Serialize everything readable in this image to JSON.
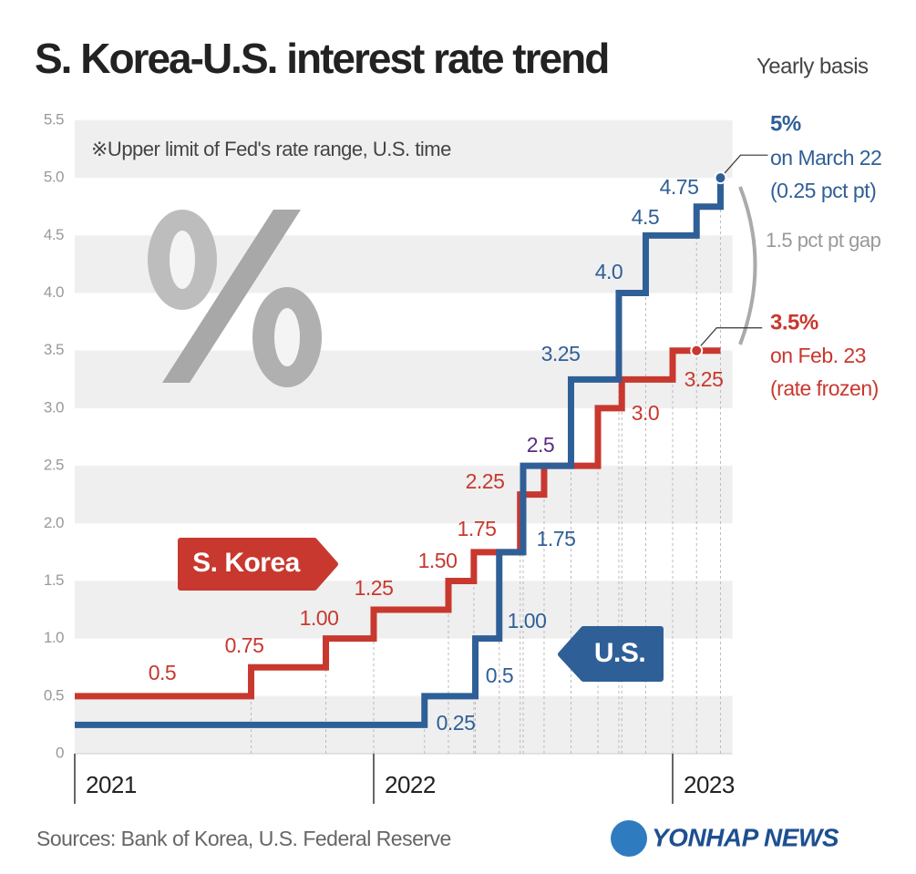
{
  "chart_data": {
    "type": "step",
    "title": "S. Korea-U.S. interest rate trend",
    "subtitle": "Yearly basis",
    "note": "※Upper limit of Fed's rate range, U.S. time",
    "source": "Sources: Bank of Korea, U.S. Federal Reserve",
    "logo": "YONHAP NEWS",
    "gap_annotation": "1.5 pct pt gap",
    "xlim": [
      2021,
      2023.2
    ],
    "xticks": [
      2021,
      2022,
      2023
    ],
    "ylim": [
      0,
      5.5
    ],
    "yticks": [
      0,
      0.5,
      {
        "value": 1,
        "label": "1.0"
      },
      1.5,
      {
        "value": 2,
        "label": "2.0"
      },
      2.5,
      {
        "value": 3,
        "label": "3.0"
      },
      3.5,
      {
        "value": 4,
        "label": "4.0"
      },
      4.5,
      {
        "value": 5,
        "label": "5.0"
      },
      5.5
    ],
    "grid": true,
    "series": [
      {
        "name": "S. Korea",
        "color": "#c8382e",
        "x": [
          2021,
          2021.59,
          2021.84,
          2022.0,
          2022.25,
          2022.335,
          2022.49,
          2022.57,
          2022.75,
          2022.83,
          2023.0
        ],
        "values": [
          0.5,
          0.75,
          1,
          1.25,
          1.5,
          1.75,
          2.25,
          2.5,
          3,
          3.25,
          3.5
        ],
        "value_labels": [
          "0.5",
          "0.75",
          "1.00",
          "1.25",
          "1.50",
          "1.75",
          "2.25",
          null,
          "3.0",
          "3.25",
          "3.5%"
        ],
        "highlight_x": 2023.08,
        "annotations": [
          "on Feb. 23",
          "(rate frozen)"
        ]
      },
      {
        "name": "U.S.",
        "color": "#2f5f97",
        "x": [
          2021,
          2022.17,
          2022.34,
          2022.42,
          2022.5,
          2022.66,
          2022.82,
          2022.91,
          2023.08,
          2023.16
        ],
        "values": [
          0.25,
          0.5,
          1,
          1.75,
          2.5,
          3.25,
          4,
          4.5,
          4.75,
          5
        ],
        "value_labels": [
          "0.25",
          "0.5",
          "1.00",
          "1.75",
          "2.5",
          "3.25",
          "4.0",
          "4.5",
          "4.75",
          "5%"
        ],
        "highlight_x": 2023.16,
        "annotations": [
          "on March 22",
          "(0.25 pct pt)"
        ]
      }
    ]
  }
}
